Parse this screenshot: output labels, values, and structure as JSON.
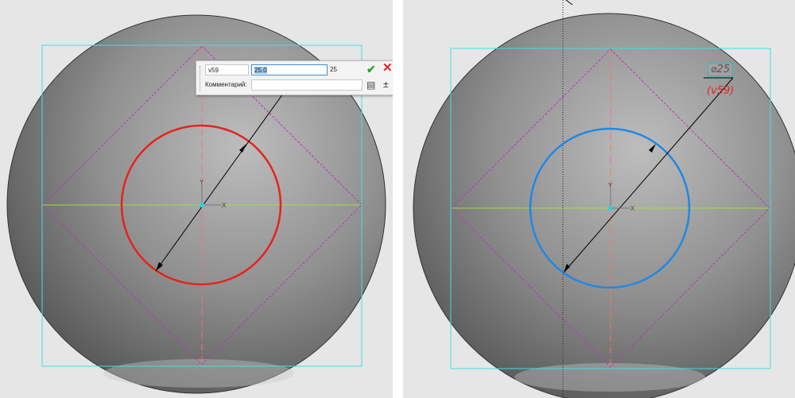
{
  "left_view": {
    "dialog": {
      "variable_name": "v59",
      "value_input": "25.0",
      "result_value": "25",
      "comment_label": "Комментарий:",
      "comment_value": "",
      "ok_icon": "checkmark-icon",
      "cancel_icon": "close-icon",
      "document_icon": "document-icon",
      "tolerance_icon": "plus-minus-icon"
    },
    "axis_y_label": "Y",
    "axis_x_label": "X",
    "circle_color": "#e8211d"
  },
  "right_view": {
    "dimension_text": "⌀25",
    "variable_label": "(v59)",
    "circle_color": "#1e88e5"
  },
  "colors": {
    "bounding_box": "#3fe0e6",
    "construction_square": "#b03ab5",
    "horizontal_axis": "#9adf3f",
    "vertical_axis": "#ff6e6e",
    "dimension_arrow": "#000000",
    "variable_text": "#e02424"
  }
}
